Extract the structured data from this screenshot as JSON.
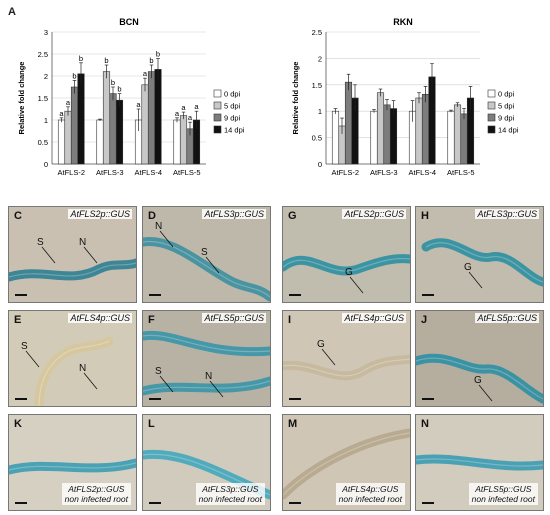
{
  "figure": {
    "panel_a_label": "A"
  },
  "chart_data": [
    {
      "type": "bar",
      "title": "BCN",
      "ylabel": "Relative fold change",
      "ylim": [
        0,
        3
      ],
      "yticks": [
        "0",
        "0.5",
        "1",
        "1.5",
        "2",
        "2.5",
        "3"
      ],
      "categories": [
        "AtFLS-2",
        "AtFLS-3",
        "AtFLS-4",
        "AtFLS-5"
      ],
      "series": [
        {
          "name": "0 dpi",
          "color": "#ffffff",
          "values": [
            1.0,
            1.0,
            1.0,
            1.0
          ],
          "errors": [
            0.05,
            0.02,
            0.25,
            0.05
          ]
        },
        {
          "name": "5 dpi",
          "color": "#c8c8c8",
          "values": [
            1.2,
            2.1,
            1.8,
            1.1
          ],
          "errors": [
            0.1,
            0.15,
            0.15,
            0.08
          ]
        },
        {
          "name": "9 dpi",
          "color": "#7d7d7d",
          "values": [
            1.75,
            1.6,
            2.1,
            0.8
          ],
          "errors": [
            0.15,
            0.15,
            0.15,
            0.15
          ]
        },
        {
          "name": "14 dpi",
          "color": "#111111",
          "values": [
            2.05,
            1.45,
            2.15,
            1.0
          ],
          "errors": [
            0.25,
            0.15,
            0.25,
            0.2
          ]
        }
      ],
      "letters": [
        [
          "a",
          "a",
          "b",
          "b"
        ],
        [
          "",
          "b",
          "b",
          "b"
        ],
        [
          "a",
          "a",
          "b",
          "b"
        ],
        [
          "a",
          "a",
          "a",
          "a"
        ]
      ],
      "legend_position": "right"
    },
    {
      "type": "bar",
      "title": "RKN",
      "ylabel": "Relative fold change",
      "ylim": [
        0,
        2.5
      ],
      "yticks": [
        "0",
        "0.5",
        "1",
        "1.5",
        "2",
        "2.5"
      ],
      "categories": [
        "AtFLS-2",
        "AtFLS-3",
        "AtFLS-4",
        "AtFLS-5"
      ],
      "series": [
        {
          "name": "0 dpi",
          "color": "#ffffff",
          "values": [
            1.0,
            1.0,
            1.0,
            1.0
          ],
          "errors": [
            0.05,
            0.03,
            0.2,
            0.02
          ]
        },
        {
          "name": "5 dpi",
          "color": "#c8c8c8",
          "values": [
            0.72,
            1.35,
            1.25,
            1.12
          ],
          "errors": [
            0.15,
            0.07,
            0.1,
            0.04
          ]
        },
        {
          "name": "9 dpi",
          "color": "#7d7d7d",
          "values": [
            1.55,
            1.12,
            1.32,
            0.95
          ],
          "errors": [
            0.15,
            0.1,
            0.15,
            0.1
          ]
        },
        {
          "name": "14 dpi",
          "color": "#111111",
          "values": [
            1.25,
            1.05,
            1.65,
            1.25
          ],
          "errors": [
            0.25,
            0.15,
            0.25,
            0.22
          ]
        }
      ],
      "legend_position": "right"
    }
  ],
  "micrographs": [
    {
      "label": "C",
      "title": "AtFLS2p::GUS",
      "bg": "#c9c0b1",
      "root": "#2f7f92",
      "annotations": [
        "S",
        "N"
      ]
    },
    {
      "label": "D",
      "title": "AtFLS3p::GUS",
      "bg": "#bdb8aa",
      "root": "#3d8fa0",
      "annotations": [
        "N",
        "S"
      ]
    },
    {
      "label": "G",
      "title": "AtFLS2p::GUS",
      "bg": "#c1bdae",
      "root": "#2d8fa2",
      "annotations": [
        "G"
      ]
    },
    {
      "label": "H",
      "title": "AtFLS3p::GUS",
      "bg": "#c2bcae",
      "root": "#2d8fa2",
      "annotations": [
        "G"
      ]
    },
    {
      "label": "E",
      "title": "AtFLS4p::GUS",
      "bg": "#d2cbb8",
      "root": "#d6c69c",
      "annotations": [
        "S",
        "N"
      ]
    },
    {
      "label": "F",
      "title": "AtFLS5p::GUS",
      "bg": "#b8b2a4",
      "root": "#3a93a7",
      "annotations": [
        "S",
        "N"
      ]
    },
    {
      "label": "I",
      "title": "AtFLS4p::GUS",
      "bg": "#cfc6b6",
      "root": "#c5b89c",
      "annotations": [
        "G"
      ]
    },
    {
      "label": "J",
      "title": "AtFLS5p::GUS",
      "bg": "#b5ae9f",
      "root": "#2d8fa2",
      "annotations": [
        "G"
      ]
    },
    {
      "label": "K",
      "title": "AtFLS2p::GUS",
      "subtitle": "non infected root",
      "bg": "#d6d0c3",
      "root": "#3b9cb2",
      "annotations": []
    },
    {
      "label": "L",
      "title": "AtFLS3p::GUS",
      "subtitle": "non infected root",
      "bg": "#d1cbbd",
      "root": "#42a7bd",
      "annotations": []
    },
    {
      "label": "M",
      "title": "AtFLS4p::GUS",
      "subtitle": "non infected root",
      "bg": "#cfc6b6",
      "root": "#b6a78d",
      "annotations": []
    },
    {
      "label": "N",
      "title": "AtFLS5p::GUS",
      "subtitle": "non infected root",
      "bg": "#d2ccbf",
      "root": "#3b9cb2",
      "annotations": []
    }
  ]
}
